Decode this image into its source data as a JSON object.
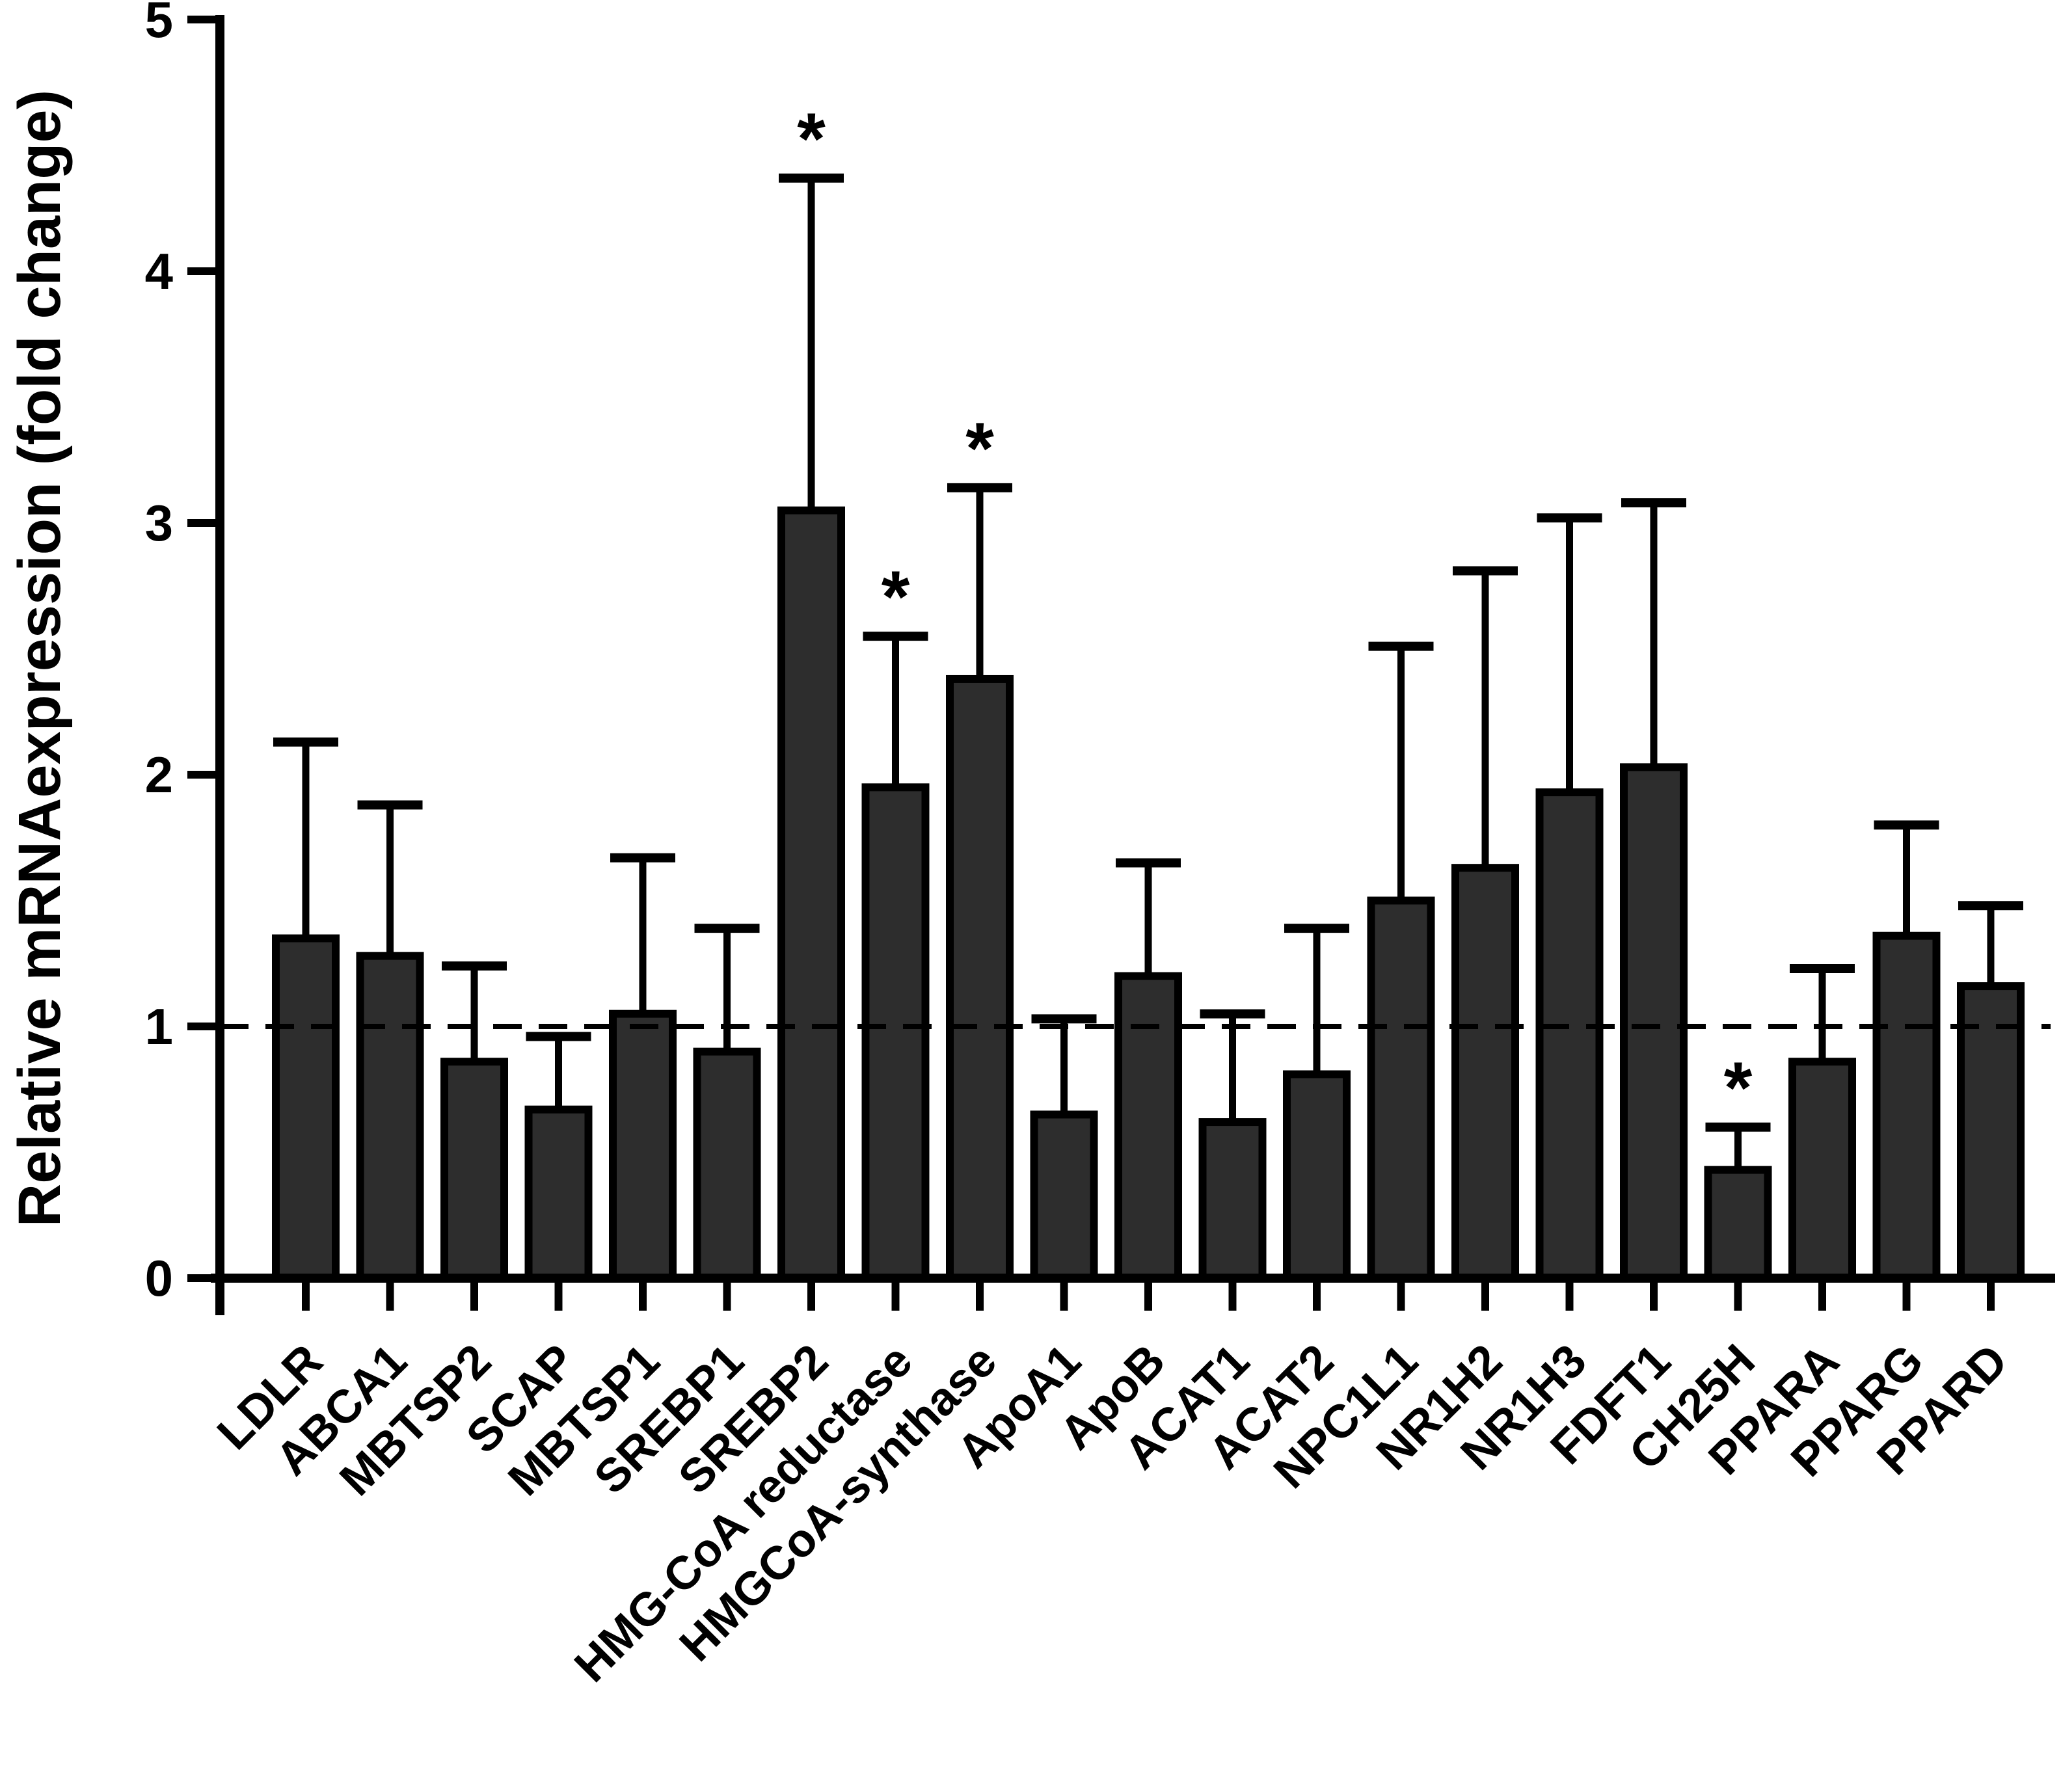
{
  "chart_data": {
    "type": "bar",
    "title": "",
    "xlabel": "",
    "ylabel": "Relative mRNAexpression (fold change)",
    "ylim": [
      0,
      5
    ],
    "yticks": [
      0,
      1,
      2,
      3,
      4,
      5
    ],
    "reference_line_y": 1,
    "grid": false,
    "legend": "none",
    "sig_marker": "*",
    "bar_color": "#2d2d2d",
    "bar_edge_color": "#000000",
    "axis_color": "#000000",
    "categories": [
      "LDLR",
      "ABCA1",
      "MBTSP2",
      "SCAP",
      "MBTSP1",
      "SREBP1",
      "SREBP2",
      "HMG-CoA reductase",
      "HMGCoA-synthase",
      "ApoA1",
      "ApoB",
      "ACAT1",
      "ACAT2",
      "NPC1L1",
      "NR1H2",
      "NR1H3",
      "FDFT1",
      "CH25H",
      "PPARA",
      "PPARG",
      "PPARD"
    ],
    "values": [
      1.35,
      1.28,
      0.86,
      0.67,
      1.05,
      0.9,
      3.05,
      1.95,
      2.38,
      0.65,
      1.2,
      0.62,
      0.81,
      1.5,
      1.63,
      1.93,
      2.03,
      0.43,
      0.86,
      1.36,
      1.16
    ],
    "error_upper": [
      2.13,
      1.88,
      1.24,
      0.96,
      1.67,
      1.39,
      4.37,
      2.55,
      3.14,
      1.03,
      1.65,
      1.05,
      1.39,
      2.51,
      2.81,
      3.02,
      3.08,
      0.6,
      1.23,
      1.8,
      1.48
    ],
    "significant": [
      false,
      false,
      false,
      false,
      false,
      false,
      true,
      true,
      true,
      false,
      false,
      false,
      false,
      false,
      false,
      false,
      false,
      true,
      false,
      false,
      false
    ]
  }
}
